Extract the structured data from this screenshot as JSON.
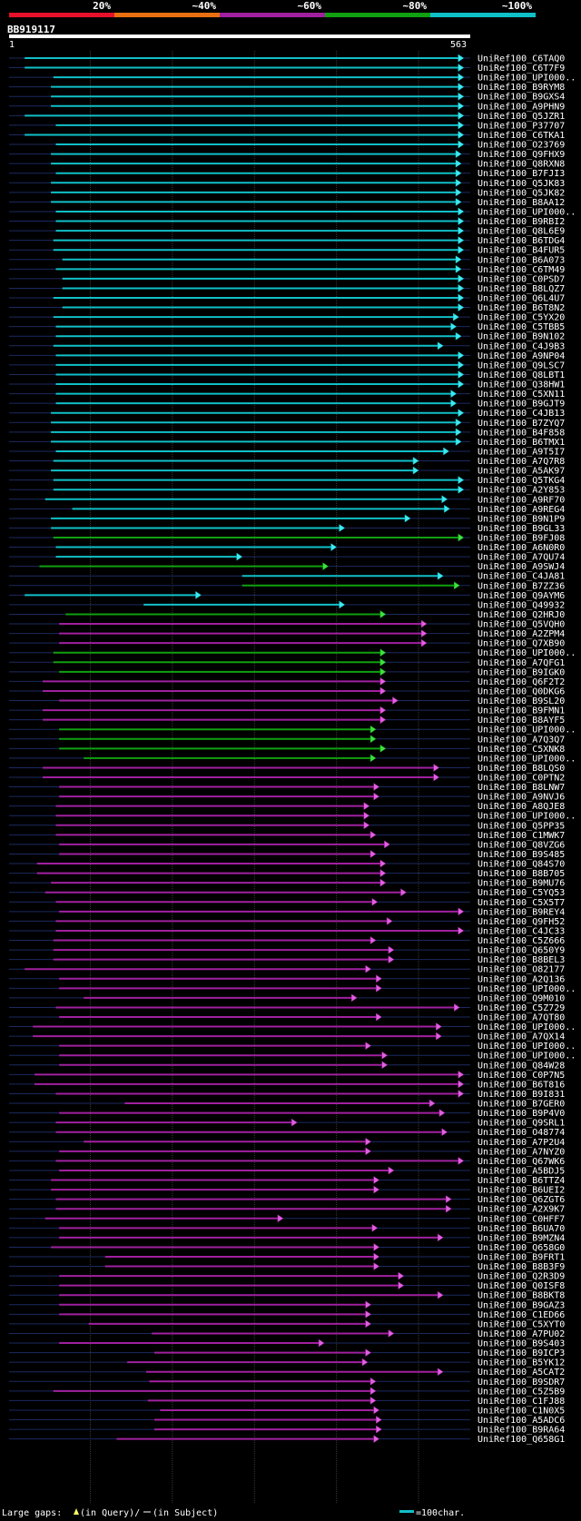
{
  "query": {
    "name": "BB919117",
    "start_label": "1",
    "end_label": "563",
    "length": 563
  },
  "legend_scale": [
    {
      "label": "20%",
      "color": "#e8102a"
    },
    {
      "label": "~40%",
      "color": "#e87010"
    },
    {
      "label": "~60%",
      "color": "#a020a0"
    },
    {
      "label": "~80%",
      "color": "#10a010"
    },
    {
      "label": "~100%",
      "color": "#10c0c8"
    }
  ],
  "footer": {
    "gaps_prefix": "Large gaps: ",
    "gap_query_label": "(in Query)/",
    "gap_subject_label": "(in Subject)",
    "scale_label": "=100char."
  },
  "chart_data": {
    "type": "alignment",
    "x_range": [
      1,
      563
    ],
    "hits": [
      [
        "UniRef100_C6TAQ0",
        "c",
        20,
        555,
        []
      ],
      [
        "UniRef100_C6T7F9",
        "c",
        20,
        555,
        []
      ],
      [
        "UniRef100_UPI000..",
        "c",
        55,
        555,
        []
      ],
      [
        "UniRef100_B9RYM8",
        "c",
        52,
        555,
        []
      ],
      [
        "UniRef100_B9GXS4",
        "c",
        52,
        555,
        []
      ],
      [
        "UniRef100_A9PHN9",
        "c",
        52,
        555,
        []
      ],
      [
        "UniRef100_Q5JZR1",
        "c",
        20,
        555,
        []
      ],
      [
        "UniRef100_P37707",
        "c",
        58,
        555,
        []
      ],
      [
        "UniRef100_C6TKA1",
        "c",
        20,
        555,
        []
      ],
      [
        "UniRef100_O23769",
        "c",
        58,
        555,
        []
      ],
      [
        "UniRef100_Q9FHX9",
        "c",
        52,
        552,
        []
      ],
      [
        "UniRef100_Q8RXN8",
        "c",
        52,
        552,
        []
      ],
      [
        "UniRef100_B7FJI3",
        "c",
        58,
        552,
        []
      ],
      [
        "UniRef100_Q5JK83",
        "c",
        52,
        552,
        []
      ],
      [
        "UniRef100_Q5JK82",
        "c",
        52,
        552,
        []
      ],
      [
        "UniRef100_B8AA12",
        "c",
        52,
        552,
        []
      ],
      [
        "UniRef100_UPI000..",
        "c",
        58,
        555,
        []
      ],
      [
        "UniRef100_B9RBI2",
        "c",
        58,
        555,
        []
      ],
      [
        "UniRef100_Q8L6E9",
        "c",
        58,
        555,
        []
      ],
      [
        "UniRef100_B6TDG4",
        "c",
        55,
        555,
        []
      ],
      [
        "UniRef100_B4FUR5",
        "c",
        55,
        555,
        []
      ],
      [
        "UniRef100_B6A073",
        "c",
        66,
        552,
        []
      ],
      [
        "UniRef100_C6TM49",
        "c",
        58,
        552,
        []
      ],
      [
        "UniRef100_C0PSD7",
        "c",
        66,
        555,
        []
      ],
      [
        "UniRef100_B8LQZ7",
        "c",
        66,
        555,
        []
      ],
      [
        "UniRef100_Q6L4U7",
        "c",
        55,
        555,
        []
      ],
      [
        "UniRef100_B6T8N2",
        "c",
        66,
        555,
        []
      ],
      [
        "UniRef100_C5YX20",
        "c",
        55,
        549,
        []
      ],
      [
        "UniRef100_C5TBB5",
        "c",
        58,
        546,
        []
      ],
      [
        "UniRef100_B9N102",
        "c",
        58,
        552,
        []
      ],
      [
        "UniRef100_C4J9B3",
        "c",
        55,
        530,
        []
      ],
      [
        "UniRef100_A9NP04",
        "c",
        58,
        555,
        []
      ],
      [
        "UniRef100_Q9LSC7",
        "c",
        58,
        555,
        []
      ],
      [
        "UniRef100_Q8LBT1",
        "c",
        58,
        555,
        []
      ],
      [
        "UniRef100_Q38HW1",
        "c",
        58,
        555,
        []
      ],
      [
        "UniRef100_C5XN11",
        "c",
        58,
        546,
        []
      ],
      [
        "UniRef100_B9GJT9",
        "c",
        58,
        546,
        []
      ],
      [
        "UniRef100_C4JB13",
        "c",
        52,
        555,
        []
      ],
      [
        "UniRef100_B7ZYQ7",
        "c",
        52,
        552,
        []
      ],
      [
        "UniRef100_B4F858",
        "c",
        52,
        552,
        []
      ],
      [
        "UniRef100_B6TMX1",
        "c",
        52,
        552,
        []
      ],
      [
        "UniRef100_A9T5I7",
        "c",
        58,
        537,
        []
      ],
      [
        "UniRef100_A7Q7R8",
        "c",
        55,
        500,
        []
      ],
      [
        "UniRef100_A5AK97",
        "c",
        52,
        500,
        []
      ],
      [
        "UniRef100_Q5TKG4",
        "c",
        55,
        555,
        []
      ],
      [
        "UniRef100_A2Y853",
        "c",
        55,
        555,
        []
      ],
      [
        "UniRef100_A9RF70",
        "c",
        45,
        535,
        []
      ],
      [
        "UniRef100_A9REG4",
        "c",
        78,
        538,
        []
      ],
      [
        "UniRef100_B9N1P9",
        "c",
        52,
        490,
        []
      ],
      [
        "UniRef100_B9GL33",
        "c",
        52,
        410,
        []
      ],
      [
        "UniRef100_B9FJ08",
        "g",
        55,
        555,
        []
      ],
      [
        "UniRef100_A6N0R0",
        "c",
        58,
        400,
        []
      ],
      [
        "UniRef100_A7QU74",
        "c",
        58,
        285,
        []
      ],
      [
        "UniRef100_A9SWJ4",
        "g",
        38,
        390,
        []
      ],
      [
        "UniRef100_C4JA81",
        "c",
        285,
        530,
        []
      ],
      [
        "UniRef100_B7ZZ36",
        "g",
        285,
        550,
        []
      ],
      [
        "UniRef100_Q9AYM6",
        "c",
        20,
        235,
        []
      ],
      [
        "UniRef100_Q49932",
        "c",
        165,
        410,
        []
      ],
      [
        "UniRef100_Q2HRJ0",
        "g",
        70,
        460,
        []
      ],
      [
        "UniRef100_Q5VQH0",
        "m",
        62,
        510,
        []
      ],
      [
        "UniRef100_A2ZPM4",
        "m",
        62,
        510,
        []
      ],
      [
        "UniRef100_Q7XB90",
        "m",
        62,
        510,
        []
      ],
      [
        "UniRef100_UPI000..",
        "g",
        55,
        460,
        []
      ],
      [
        "UniRef100_A7QFG1",
        "g",
        55,
        460,
        []
      ],
      [
        "UniRef100_B9IGK0",
        "g",
        62,
        460,
        []
      ],
      [
        "UniRef100_Q6F2T2",
        "m",
        42,
        460,
        []
      ],
      [
        "UniRef100_Q0DKG6",
        "m",
        42,
        460,
        []
      ],
      [
        "UniRef100_B9SL20",
        "m",
        62,
        475,
        []
      ],
      [
        "UniRef100_B9FMN1",
        "m",
        42,
        460,
        []
      ],
      [
        "UniRef100_B8AYF5",
        "m",
        42,
        460,
        []
      ],
      [
        "UniRef100_UPI000..",
        "g",
        62,
        448,
        []
      ],
      [
        "UniRef100_A7Q3Q7",
        "g",
        62,
        448,
        []
      ],
      [
        "UniRef100_C5XNK8",
        "g",
        62,
        460,
        []
      ],
      [
        "UniRef100_UPI000..",
        "g",
        92,
        448,
        []
      ],
      [
        "UniRef100_B8LQS0",
        "m",
        42,
        525,
        []
      ],
      [
        "UniRef100_C0PTN2",
        "m",
        42,
        525,
        []
      ],
      [
        "UniRef100_B8LNW7",
        "m",
        62,
        452,
        []
      ],
      [
        "UniRef100_A9NVJ6",
        "m",
        62,
        452,
        []
      ],
      [
        "UniRef100_A8QJE8",
        "m",
        58,
        440,
        []
      ],
      [
        "UniRef100_UPI000..",
        "m",
        58,
        440,
        []
      ],
      [
        "UniRef100_Q5PP35",
        "m",
        58,
        440,
        []
      ],
      [
        "UniRef100_C1MWK7",
        "m",
        58,
        448,
        []
      ],
      [
        "UniRef100_Q8VZG6",
        "m",
        62,
        465,
        []
      ],
      [
        "UniRef100_B9S485",
        "m",
        62,
        448,
        []
      ],
      [
        "UniRef100_Q84S70",
        "m",
        35,
        460,
        []
      ],
      [
        "UniRef100_B8B705",
        "m",
        35,
        460,
        []
      ],
      [
        "UniRef100_B9MU76",
        "m",
        52,
        460,
        []
      ],
      [
        "UniRef100_C5YQ53",
        "m",
        45,
        485,
        []
      ],
      [
        "UniRef100_C5X5T7",
        "m",
        58,
        450,
        []
      ],
      [
        "UniRef100_B9REY4",
        "m",
        62,
        555,
        []
      ],
      [
        "UniRef100_Q9FH52",
        "m",
        58,
        468,
        []
      ],
      [
        "UniRef100_C4JC33",
        "m",
        58,
        555,
        []
      ],
      [
        "UniRef100_C5Z666",
        "m",
        55,
        448,
        []
      ],
      [
        "UniRef100_Q650Y9",
        "m",
        55,
        470,
        []
      ],
      [
        "UniRef100_B8BEL3",
        "m",
        55,
        470,
        []
      ],
      [
        "UniRef100_O82177",
        "m",
        20,
        442,
        []
      ],
      [
        "UniRef100_A2Q136",
        "m",
        62,
        455,
        []
      ],
      [
        "UniRef100_UPI000..",
        "m",
        62,
        455,
        []
      ],
      [
        "UniRef100_Q9M010",
        "m",
        92,
        425,
        []
      ],
      [
        "UniRef100_C5Z729",
        "m",
        58,
        550,
        []
      ],
      [
        "UniRef100_A7QT80",
        "m",
        62,
        455,
        []
      ],
      [
        "UniRef100_UPI000..",
        "m",
        30,
        528,
        []
      ],
      [
        "UniRef100_A7QX14",
        "m",
        30,
        528,
        []
      ],
      [
        "UniRef100_UPI000..",
        "m",
        62,
        442,
        []
      ],
      [
        "UniRef100_UPI000..",
        "m",
        62,
        462,
        []
      ],
      [
        "UniRef100_Q84W28",
        "m",
        62,
        462,
        []
      ],
      [
        "UniRef100_C0P7N5",
        "m",
        32,
        555,
        []
      ],
      [
        "UniRef100_B6T816",
        "m",
        32,
        555,
        []
      ],
      [
        "UniRef100_B9I831",
        "m",
        58,
        555,
        []
      ],
      [
        "UniRef100_B7GER0",
        "m",
        142,
        520,
        []
      ],
      [
        "UniRef100_B9P4V0",
        "m",
        62,
        532,
        []
      ],
      [
        "UniRef100_Q9SRL1",
        "m",
        58,
        352,
        []
      ],
      [
        "UniRef100_O48774",
        "m",
        58,
        535,
        []
      ],
      [
        "UniRef100_A7P2U4",
        "m",
        92,
        442,
        []
      ],
      [
        "UniRef100_A7NYZ0",
        "m",
        62,
        442,
        []
      ],
      [
        "UniRef100_Q67WK6",
        "m",
        58,
        555,
        []
      ],
      [
        "UniRef100_A5BDJ5",
        "m",
        62,
        470,
        []
      ],
      [
        "UniRef100_B6TTZ4",
        "m",
        52,
        452,
        []
      ],
      [
        "UniRef100_B6UEI2",
        "m",
        52,
        452,
        []
      ],
      [
        "UniRef100_Q6ZGT6",
        "m",
        58,
        540,
        []
      ],
      [
        "UniRef100_A2X9K7",
        "m",
        58,
        540,
        []
      ],
      [
        "UniRef100_C0HFF7",
        "m",
        45,
        335,
        []
      ],
      [
        "UniRef100_B6UA70",
        "m",
        62,
        450,
        []
      ],
      [
        "UniRef100_B9MZN4",
        "m",
        62,
        530,
        []
      ],
      [
        "UniRef100_Q658G0",
        "m",
        52,
        452,
        []
      ],
      [
        "UniRef100_B9FRT1",
        "m",
        118,
        452,
        []
      ],
      [
        "UniRef100_B8B3F9",
        "m",
        118,
        452,
        []
      ],
      [
        "UniRef100_Q2R3D9",
        "m",
        62,
        482,
        []
      ],
      [
        "UniRef100_Q0ISF8",
        "m",
        62,
        482,
        []
      ],
      [
        "UniRef100_B8BKT8",
        "m",
        62,
        530,
        []
      ],
      [
        "UniRef100_B9GAZ3",
        "m",
        62,
        442,
        []
      ],
      [
        "UniRef100_C1ED66",
        "m",
        62,
        442,
        []
      ],
      [
        "UniRef100_C5XYT0",
        "m",
        98,
        442,
        []
      ],
      [
        "UniRef100_A7PU02",
        "m",
        175,
        470,
        []
      ],
      [
        "UniRef100_B9S403",
        "m",
        62,
        385,
        []
      ],
      [
        "UniRef100_B9ICP3",
        "m",
        178,
        442,
        []
      ],
      [
        "UniRef100_B5YK12",
        "m",
        145,
        438,
        []
      ],
      [
        "UniRef100_A5CAT2",
        "m",
        168,
        530,
        []
      ],
      [
        "UniRef100_B9SDR7",
        "m",
        172,
        448,
        []
      ],
      [
        "UniRef100_C5Z5B9",
        "m",
        55,
        448,
        []
      ],
      [
        "UniRef100_C1FJ88",
        "m",
        170,
        448,
        []
      ],
      [
        "UniRef100_C1N0X5",
        "m",
        185,
        452,
        []
      ],
      [
        "UniRef100_A5ADC6",
        "m",
        178,
        455,
        []
      ],
      [
        "UniRef100_B9RA64",
        "m",
        178,
        455,
        []
      ],
      [
        "UniRef100_Q658G1",
        "m",
        132,
        452,
        []
      ]
    ]
  }
}
